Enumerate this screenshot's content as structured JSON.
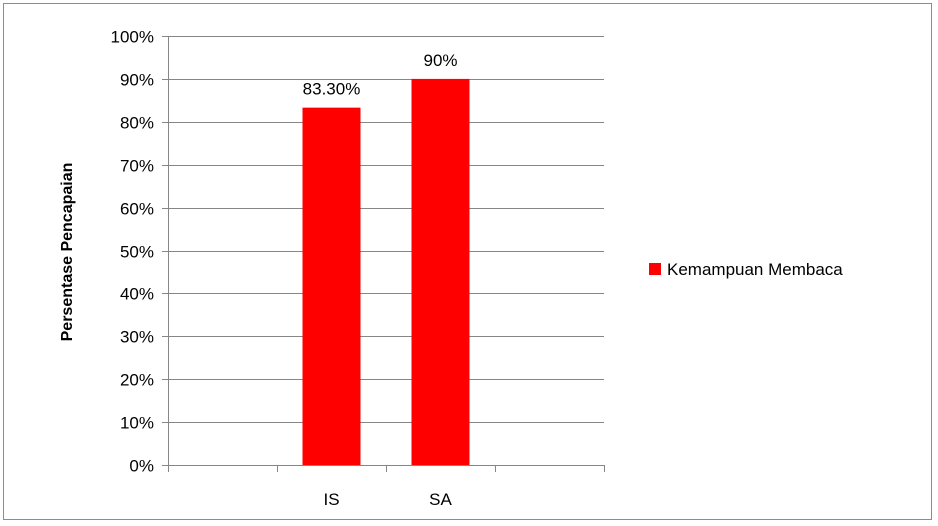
{
  "chart_data": {
    "type": "bar",
    "categories": [
      "",
      "IS",
      "SA",
      ""
    ],
    "series": [
      {
        "name": "Kemampuan Membaca",
        "values": [
          null,
          83.3,
          90,
          null
        ],
        "color": "#ff0000"
      }
    ],
    "data_labels": [
      "",
      "83.30%",
      "90%",
      ""
    ],
    "ylabel": "Persentase Pencapaian",
    "xlabel": "",
    "ylim": [
      0,
      100
    ],
    "y_ticks": [
      0,
      10,
      20,
      30,
      40,
      50,
      60,
      70,
      80,
      90,
      100
    ],
    "y_tick_labels": [
      "0%",
      "10%",
      "20%",
      "30%",
      "40%",
      "50%",
      "60%",
      "70%",
      "80%",
      "90%",
      "100%"
    ],
    "grid": true,
    "legend_position": "right",
    "colors": {
      "gridline": "#868686",
      "axis": "#868686"
    }
  }
}
